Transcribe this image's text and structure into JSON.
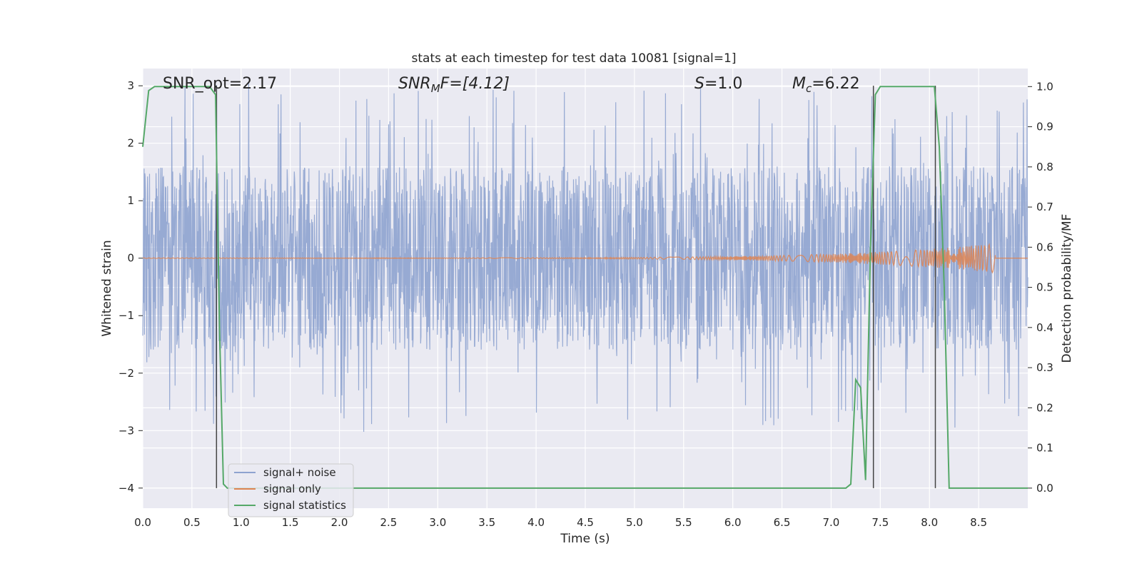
{
  "chart_data": {
    "type": "line",
    "title": "stats at each timestep for test data 10081 [signal=1]",
    "xlabel": "Time (s)",
    "ylabel": "Whitened strain",
    "ylabel_right": "Detection probability/MF",
    "xlim": [
      0.0,
      9.0
    ],
    "ylim": [
      -4.35,
      3.3
    ],
    "ylim_right": [
      -0.05,
      1.045
    ],
    "x_ticks": [
      "0.0",
      "0.5",
      "1.0",
      "1.5",
      "2.0",
      "2.5",
      "3.0",
      "3.5",
      "4.0",
      "4.5",
      "5.0",
      "5.5",
      "6.0",
      "6.5",
      "7.0",
      "7.5",
      "8.0",
      "8.5"
    ],
    "x_tick_values": [
      0,
      0.5,
      1,
      1.5,
      2,
      2.5,
      3,
      3.5,
      4,
      4.5,
      5,
      5.5,
      6,
      6.5,
      7,
      7.5,
      8,
      8.5
    ],
    "y_ticks": [
      "−4",
      "−3",
      "−2",
      "−1",
      "0",
      "1",
      "2",
      "3"
    ],
    "y_tick_values": [
      -4,
      -3,
      -2,
      -1,
      0,
      1,
      2,
      3
    ],
    "y_ticks_right": [
      "0.0",
      "0.1",
      "0.2",
      "0.3",
      "0.4",
      "0.5",
      "0.6",
      "0.7",
      "0.8",
      "0.9",
      "1.0"
    ],
    "y_tick_values_right": [
      0,
      0.1,
      0.2,
      0.3,
      0.4,
      0.5,
      0.6,
      0.7,
      0.8,
      0.9,
      1.0
    ],
    "grid": true,
    "legend_position": "lower-left",
    "annotations": {
      "snr_opt": "SNR_opt=2.17",
      "snr_mf_main": "SNR",
      "snr_mf_sub": "M",
      "snr_mf_rest": "F=[4.12]",
      "s_main": "S",
      "s_rest": "=1.0",
      "mc_main": "M",
      "mc_sub": "c",
      "mc_rest": "=6.22"
    },
    "vertical_lines_x": [
      0.75,
      7.43,
      8.06
    ],
    "series": [
      {
        "name": "signal+ noise",
        "color": "#8ea3cf",
        "description_values": "dense noise series, approx uniform band between -1.6 and 1.6 with spikes to about +3 and -3",
        "band": [
          -1.6,
          1.6
        ],
        "spike_range": [
          -3.1,
          3.0
        ]
      },
      {
        "name": "signal only",
        "color": "#dd8452",
        "chirp_end": 8.67,
        "final_amplitude": 0.25
      },
      {
        "name": "signal statistics",
        "color": "#55a868",
        "axis": "right",
        "x": [
          0.0,
          0.06,
          0.12,
          0.3,
          0.5,
          0.68,
          0.74,
          0.78,
          0.82,
          0.86,
          1.0,
          2.0,
          3.0,
          4.0,
          5.0,
          6.0,
          6.9,
          7.15,
          7.2,
          7.25,
          7.3,
          7.35,
          7.4,
          7.45,
          7.5,
          7.7,
          7.9,
          8.05,
          8.1,
          8.15,
          8.2,
          8.3,
          8.5,
          9.0
        ],
        "y": [
          0.85,
          0.99,
          1.0,
          1.0,
          1.0,
          1.0,
          0.98,
          0.4,
          0.01,
          0.0,
          0.0,
          0.0,
          0.0,
          0.0,
          0.0,
          0.0,
          0.0,
          0.0,
          0.01,
          0.27,
          0.25,
          0.02,
          0.6,
          0.98,
          1.0,
          1.0,
          1.0,
          1.0,
          0.85,
          0.5,
          0.0,
          0.0,
          0.0,
          0.0
        ]
      }
    ]
  },
  "legend": {
    "items": [
      {
        "label": "signal+ noise",
        "color": "#8ea3cf"
      },
      {
        "label": "signal only",
        "color": "#dd8452"
      },
      {
        "label": "signal statistics",
        "color": "#55a868"
      }
    ]
  }
}
